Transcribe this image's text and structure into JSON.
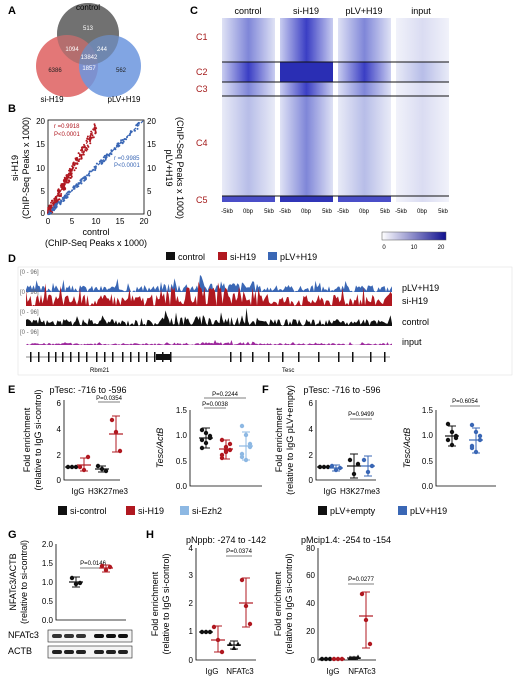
{
  "panels": {
    "A": {
      "letter": "A",
      "sets": [
        "control",
        "si-H19",
        "pLV+H19"
      ],
      "numbers": {
        "control_only": "513",
        "si_only": "6386",
        "plv_only": "562",
        "ctrl_si": "1094",
        "ctrl_plv": "244",
        "center": "13842",
        "si_plv": "1857"
      }
    },
    "B": {
      "letter": "B",
      "ylabel_left_1": "si-H19",
      "ylabel_left_2": "(ChIP-Seq Peaks x 1000)",
      "ylabel_right_1": "pLV+H19",
      "ylabel_right_2": "(ChIP-Seq Peaks x 1000)",
      "xlabel_1": "control",
      "xlabel_2": "(ChIP-Seq Peaks x 1000)",
      "r_red": "r =0.9918",
      "p_red": "P<0.0001",
      "r_blue": "r =0.9985",
      "p_blue": "P<0.0001",
      "ticks_left": [
        "20",
        "15",
        "10",
        "5",
        "0"
      ],
      "ticks_right": [
        "20",
        "15",
        "10",
        "5",
        "0"
      ],
      "ticks_x": [
        "0",
        "5",
        "10",
        "15",
        "20"
      ]
    },
    "C": {
      "letter": "C",
      "columns": [
        "control",
        "si-H19",
        "pLV+H19",
        "input"
      ],
      "clusters": [
        "C1",
        "C2",
        "C3",
        "C4",
        "C5"
      ],
      "xticks": [
        "-5kb",
        "0bp",
        "5kb"
      ],
      "scale": [
        "0",
        "10",
        "20"
      ]
    },
    "D": {
      "letter": "D",
      "legend": [
        "control",
        "si-H19",
        "pLV+H19"
      ],
      "tracks": [
        "pLV+H19",
        "si-H19",
        "control",
        "input"
      ],
      "range": "[0 - 96]",
      "genes": [
        "Rbm21",
        "Tesc"
      ]
    },
    "E": {
      "letter": "E",
      "title": "pTesc: -716 to -596",
      "ylabel_1": "Fold enrichment",
      "ylabel_2": "(relative to IgG si-control)",
      "yticks": [
        "6",
        "4",
        "2",
        "0"
      ],
      "xcats": [
        "IgG",
        "H3K27me3"
      ],
      "pval": "P=0.0354",
      "ylabel2": "Tesc/ActB",
      "yticks2": [
        "1.5",
        "1.0",
        "0.5",
        "0.0"
      ],
      "pvals2": [
        "P=0.2244",
        "P=0.0038"
      ],
      "legend": [
        "si-control",
        "si-H19",
        "si-Ezh2"
      ]
    },
    "F": {
      "letter": "F",
      "title": "pTesc: -716 to -596",
      "ylabel_1": "Fold enrichment",
      "ylabel_2": "(relative to IgG pLV+empty)",
      "yticks": [
        "6",
        "4",
        "2",
        "0"
      ],
      "xcats": [
        "IgG",
        "H3K27me3"
      ],
      "pval": "P=0.9499",
      "ylabel2": "Tesc/ActB",
      "yticks2": [
        "1.5",
        "1.0",
        "0.5",
        "0.0"
      ],
      "pval2": "P=0.6054",
      "legend": [
        "pLV+empty",
        "pLV+H19"
      ]
    },
    "G": {
      "letter": "G",
      "ylabel_1": "NFATc3/ACTB",
      "ylabel_2": "(relative to si-control)",
      "yticks": [
        "2.0",
        "1.5",
        "1.0",
        "0.5",
        "0.0"
      ],
      "pval": "P=0.0146",
      "blots": [
        "NFATc3",
        "ACTB"
      ]
    },
    "H": {
      "letter": "H",
      "title1": "pNppb: -274 to -142",
      "title2": "pMcip1.4: -254 to -154",
      "ylabel_1": "Fold enrichment",
      "ylabel_2": "(relative to IgG si-control)",
      "yticks1": [
        "4",
        "3",
        "2",
        "1",
        "0"
      ],
      "yticks2": [
        "80",
        "60",
        "40",
        "20",
        "0"
      ],
      "xcats": [
        "IgG",
        "NFATc3"
      ],
      "pval1": "P=0.0374",
      "pval2": "P=0.0277"
    }
  },
  "colors": {
    "control": "#111111",
    "si": "#b01820",
    "plv": "#3a67b5",
    "ezh2": "#8db8e3",
    "heat": "#2a2ab0"
  }
}
